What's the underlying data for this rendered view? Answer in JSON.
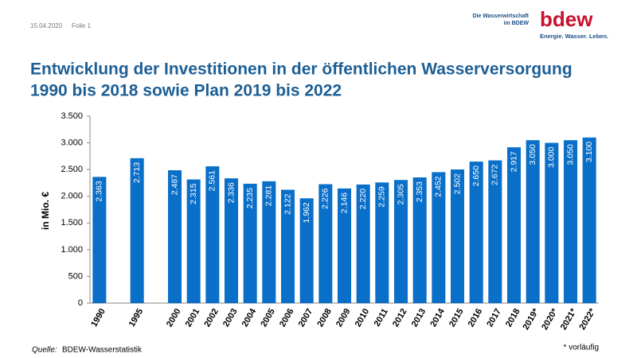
{
  "header": {
    "date": "15.04.2020",
    "slide": "Folie 1",
    "logo": "bdew",
    "logo_line1": "Die Wasserwirtschaft",
    "logo_line2": "im BDEW",
    "logo_tagline": "Energie. Wasser. Leben."
  },
  "chart_data": {
    "type": "bar",
    "title_line1": "Entwicklung der Investitionen in der öffentlichen Wasserversorgung",
    "title_line2": "1990 bis 2018 sowie Plan 2019 bis 2022",
    "y_label": "in Mio. €",
    "categories": [
      "1990",
      null,
      "1995",
      null,
      "2000",
      "2001",
      "2002",
      "2003",
      "2004",
      "2005",
      "2006",
      "2007",
      "2008",
      "2009",
      "2010",
      "2011",
      "2012",
      "2013",
      "2014",
      "2015",
      "2016",
      "2017",
      "2018",
      "2019*",
      "2020*",
      "2021*",
      "2022*"
    ],
    "values": [
      2363,
      null,
      2713,
      null,
      2487,
      2315,
      2561,
      2336,
      2235,
      2281,
      2122,
      1962,
      2226,
      2146,
      2220,
      2259,
      2305,
      2353,
      2452,
      2502,
      2650,
      2672,
      2917,
      3050,
      3000,
      3050,
      3100
    ],
    "value_labels": [
      "2.363",
      null,
      "2.713",
      null,
      "2.487",
      "2.315",
      "2.561",
      "2.336",
      "2.235",
      "2.281",
      "2.122",
      "1.962",
      "2.226",
      "2.146",
      "2.220",
      "2.259",
      "2.305",
      "2.353",
      "2.452",
      "2.502",
      "2.650",
      "2.672",
      "2.917",
      "3.050",
      "3.000",
      "3.050",
      "3.100"
    ],
    "color": "#0a6fc9",
    "ylim": [
      0,
      3500
    ],
    "yticks": [
      0,
      500,
      {
        "value": 1000,
        "label": "1.000"
      },
      {
        "value": 1500,
        "label": "1.500"
      },
      {
        "value": 2000,
        "label": "2.000"
      },
      {
        "value": 2500,
        "label": "2.500"
      },
      {
        "value": 3000,
        "label": "3.000"
      },
      {
        "value": 3500,
        "label": "3.500"
      }
    ],
    "grid": false,
    "source_label": "Quelle:",
    "source": "BDEW-Wasserstatistik",
    "note": "* vorläufig"
  }
}
